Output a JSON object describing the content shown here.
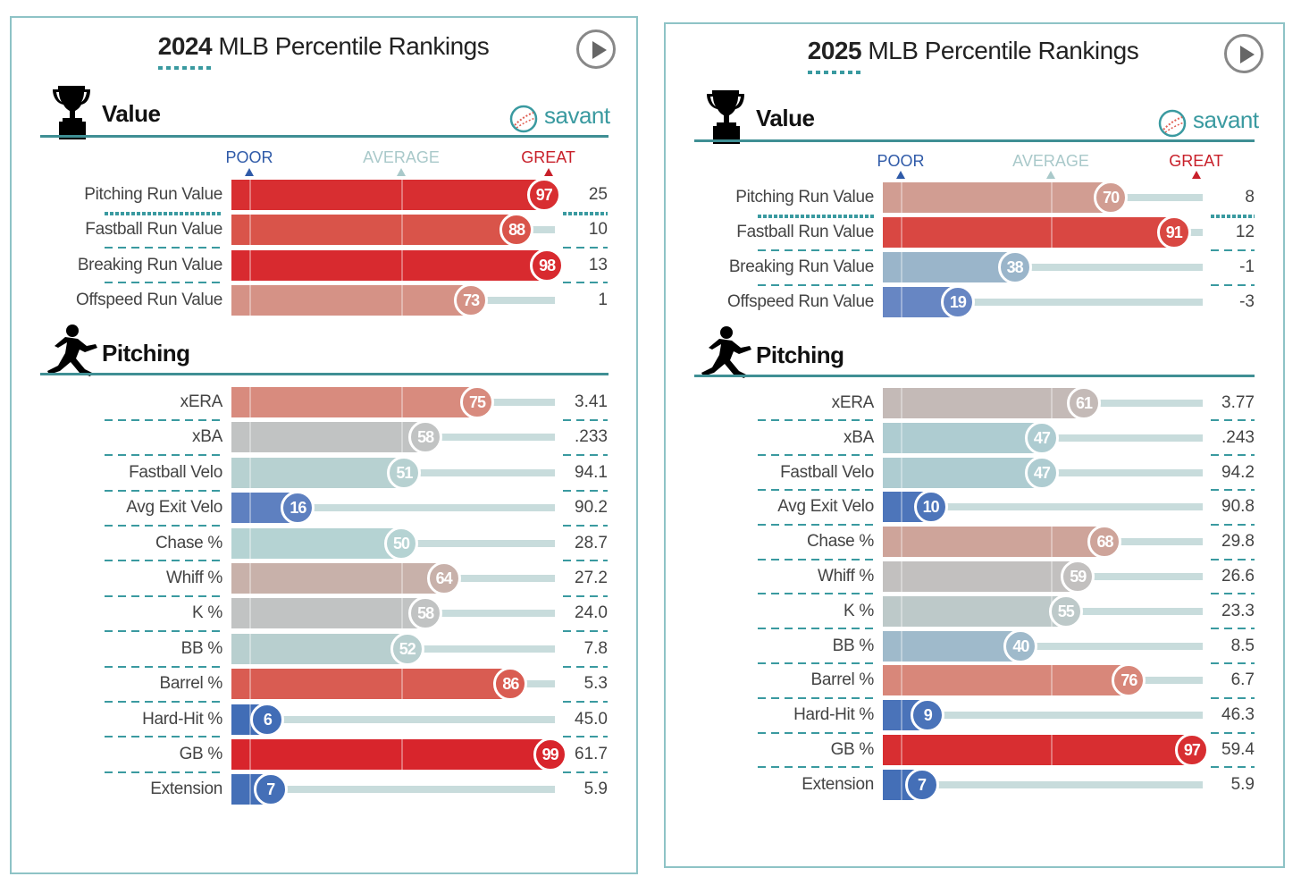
{
  "colors": {
    "great": "#d82129",
    "average": "#b5cfd1",
    "poor": "#3062b0",
    "accent": "#3a9aa0"
  },
  "panels": [
    {
      "year": "2024",
      "title_rest": " MLB Percentile Rankings",
      "logo": "savant",
      "scale": {
        "poor": "POOR",
        "average": "AVERAGE",
        "great": "GREAT"
      },
      "sections": [
        {
          "name": "Value",
          "icon": "trophy-icon",
          "rows": [
            {
              "label": "Pitching Run Value",
              "pct": 97,
              "value": "25"
            },
            {
              "label": "Fastball Run Value",
              "pct": 88,
              "value": "10"
            },
            {
              "label": "Breaking Run Value",
              "pct": 98,
              "value": "13"
            },
            {
              "label": "Offspeed Run Value",
              "pct": 73,
              "value": "1"
            }
          ]
        },
        {
          "name": "Pitching",
          "icon": "pitcher-icon",
          "rows": [
            {
              "label": "xERA",
              "pct": 75,
              "value": "3.41"
            },
            {
              "label": "xBA",
              "pct": 58,
              "value": ".233"
            },
            {
              "label": "Fastball Velo",
              "pct": 51,
              "value": "94.1"
            },
            {
              "label": "Avg Exit Velo",
              "pct": 16,
              "value": "90.2"
            },
            {
              "label": "Chase %",
              "pct": 50,
              "value": "28.7"
            },
            {
              "label": "Whiff %",
              "pct": 64,
              "value": "27.2"
            },
            {
              "label": "K %",
              "pct": 58,
              "value": "24.0"
            },
            {
              "label": "BB %",
              "pct": 52,
              "value": "7.8"
            },
            {
              "label": "Barrel %",
              "pct": 86,
              "value": "5.3"
            },
            {
              "label": "Hard-Hit %",
              "pct": 6,
              "value": "45.0"
            },
            {
              "label": "GB %",
              "pct": 99,
              "value": "61.7"
            },
            {
              "label": "Extension",
              "pct": 7,
              "value": "5.9"
            }
          ]
        }
      ]
    },
    {
      "year": "2025",
      "title_rest": " MLB Percentile Rankings",
      "logo": "savant",
      "scale": {
        "poor": "POOR",
        "average": "AVERAGE",
        "great": "GREAT"
      },
      "sections": [
        {
          "name": "Value",
          "icon": "trophy-icon",
          "rows": [
            {
              "label": "Pitching Run Value",
              "pct": 70,
              "value": "8"
            },
            {
              "label": "Fastball Run Value",
              "pct": 91,
              "value": "12"
            },
            {
              "label": "Breaking Run Value",
              "pct": 38,
              "value": "-1"
            },
            {
              "label": "Offspeed Run Value",
              "pct": 19,
              "value": "-3"
            }
          ]
        },
        {
          "name": "Pitching",
          "icon": "pitcher-icon",
          "rows": [
            {
              "label": "xERA",
              "pct": 61,
              "value": "3.77"
            },
            {
              "label": "xBA",
              "pct": 47,
              "value": ".243"
            },
            {
              "label": "Fastball Velo",
              "pct": 47,
              "value": "94.2"
            },
            {
              "label": "Avg Exit Velo",
              "pct": 10,
              "value": "90.8"
            },
            {
              "label": "Chase %",
              "pct": 68,
              "value": "29.8"
            },
            {
              "label": "Whiff %",
              "pct": 59,
              "value": "26.6"
            },
            {
              "label": "K %",
              "pct": 55,
              "value": "23.3"
            },
            {
              "label": "BB %",
              "pct": 40,
              "value": "8.5"
            },
            {
              "label": "Barrel %",
              "pct": 76,
              "value": "6.7"
            },
            {
              "label": "Hard-Hit %",
              "pct": 9,
              "value": "46.3"
            },
            {
              "label": "GB %",
              "pct": 97,
              "value": "59.4"
            },
            {
              "label": "Extension",
              "pct": 7,
              "value": "5.9"
            }
          ]
        }
      ]
    }
  ],
  "chart_data": [
    {
      "type": "bar",
      "title": "2024 MLB Percentile Rankings",
      "xlim": [
        0,
        100
      ],
      "categories": [
        "Pitching Run Value",
        "Fastball Run Value",
        "Breaking Run Value",
        "Offspeed Run Value",
        "xERA",
        "xBA",
        "Fastball Velo",
        "Avg Exit Velo",
        "Chase %",
        "Whiff %",
        "K %",
        "BB %",
        "Barrel %",
        "Hard-Hit %",
        "GB %",
        "Extension"
      ],
      "values": [
        97,
        88,
        98,
        73,
        75,
        58,
        51,
        16,
        50,
        64,
        58,
        52,
        86,
        6,
        99,
        7
      ]
    },
    {
      "type": "bar",
      "title": "2025 MLB Percentile Rankings",
      "xlim": [
        0,
        100
      ],
      "categories": [
        "Pitching Run Value",
        "Fastball Run Value",
        "Breaking Run Value",
        "Offspeed Run Value",
        "xERA",
        "xBA",
        "Fastball Velo",
        "Avg Exit Velo",
        "Chase %",
        "Whiff %",
        "K %",
        "BB %",
        "Barrel %",
        "Hard-Hit %",
        "GB %",
        "Extension"
      ],
      "values": [
        70,
        91,
        38,
        19,
        61,
        47,
        47,
        10,
        68,
        59,
        55,
        40,
        76,
        9,
        97,
        7
      ]
    }
  ]
}
